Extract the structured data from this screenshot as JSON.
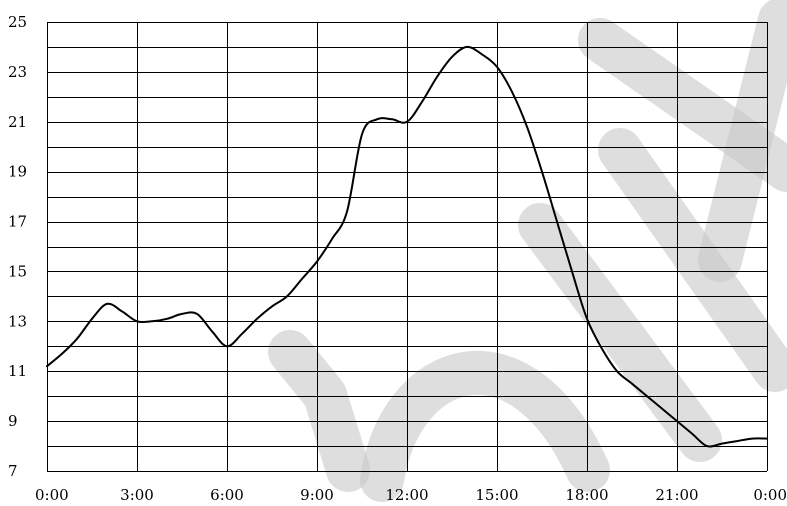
{
  "chart_data": {
    "type": "line",
    "title": "",
    "xlabel": "",
    "ylabel": "",
    "x_tick_labels": [
      "0:00",
      "3:00",
      "6:00",
      "9:00",
      "12:00",
      "15:00",
      "18:00",
      "21:00",
      "0:00"
    ],
    "x_range_hours": [
      0,
      24
    ],
    "y_tick_labels": [
      "7",
      "9",
      "11",
      "13",
      "15",
      "17",
      "19",
      "21",
      "23",
      "25"
    ],
    "ylim": [
      7,
      25
    ],
    "grid": true,
    "series": [
      {
        "color": "#000000",
        "hours": [
          0,
          0.5,
          1,
          1.5,
          2,
          2.5,
          3,
          3.5,
          4,
          4.5,
          5,
          5.5,
          6,
          6.5,
          7,
          7.5,
          8,
          8.5,
          9,
          9.5,
          10,
          10.5,
          11,
          11.5,
          12,
          12.5,
          13,
          13.5,
          14,
          14.5,
          15,
          15.5,
          16,
          16.5,
          17,
          17.5,
          18,
          18.5,
          19,
          19.5,
          20,
          20.5,
          21,
          21.5,
          22,
          22.5,
          23,
          23.5,
          24
        ],
        "values": [
          11.2,
          11.7,
          12.3,
          13.1,
          13.7,
          13.4,
          13.0,
          13.0,
          13.1,
          13.3,
          13.3,
          12.6,
          12.0,
          12.5,
          13.1,
          13.6,
          14.0,
          14.7,
          15.4,
          16.3,
          17.4,
          20.5,
          21.1,
          21.1,
          21.0,
          21.8,
          22.8,
          23.6,
          24.0,
          23.7,
          23.2,
          22.2,
          20.8,
          19.0,
          17.0,
          15.0,
          13.1,
          11.9,
          11.0,
          10.5,
          10.0,
          9.5,
          9.0,
          8.5,
          8.0,
          8.1,
          8.2,
          8.3,
          8.3
        ]
      }
    ],
    "watermark_color": "#c8c8c8"
  }
}
